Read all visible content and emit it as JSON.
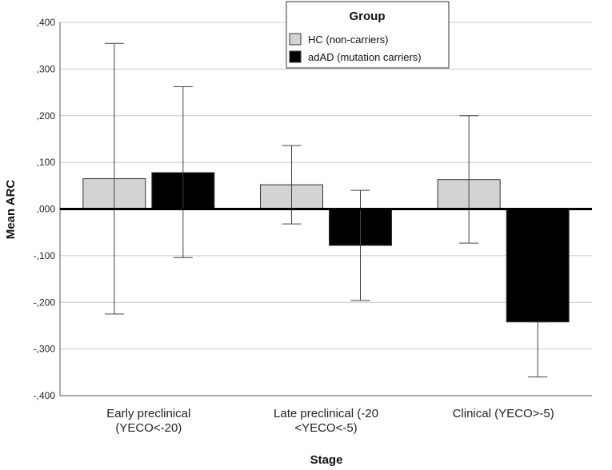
{
  "chart_data": {
    "type": "bar",
    "title": "",
    "xlabel": "Stage",
    "ylabel": "Mean ARC",
    "ylim": [
      -0.4,
      0.4
    ],
    "yticks": [
      ",400",
      ",300",
      ",200",
      ",100",
      ",000",
      "-,100",
      "-,200",
      "-,300",
      "-,400"
    ],
    "ytick_values": [
      0.4,
      0.3,
      0.2,
      0.1,
      0.0,
      -0.1,
      -0.2,
      -0.3,
      -0.4
    ],
    "categories": [
      {
        "line1": "Early preclinical",
        "line2": "(YECO<-20)"
      },
      {
        "line1": "Late preclinical  (-20",
        "line2": "<YECO<-5)"
      },
      {
        "line1": "Clinical (YECO>-5)",
        "line2": ""
      }
    ],
    "legend": {
      "title": "Group",
      "position": "top-center"
    },
    "series": [
      {
        "name": "HC (non-carriers)",
        "color": "#d3d3d3",
        "values": [
          0.065,
          0.052,
          0.063
        ],
        "err_low": [
          -0.225,
          -0.032,
          -0.073
        ],
        "err_high": [
          0.355,
          0.136,
          0.2
        ]
      },
      {
        "name": "adAD (mutation carriers)",
        "color": "#000000",
        "values": [
          0.078,
          -0.078,
          -0.242
        ],
        "err_low": [
          -0.104,
          -0.196,
          -0.36
        ],
        "err_high": [
          0.262,
          0.04,
          -0.242
        ]
      }
    ]
  }
}
